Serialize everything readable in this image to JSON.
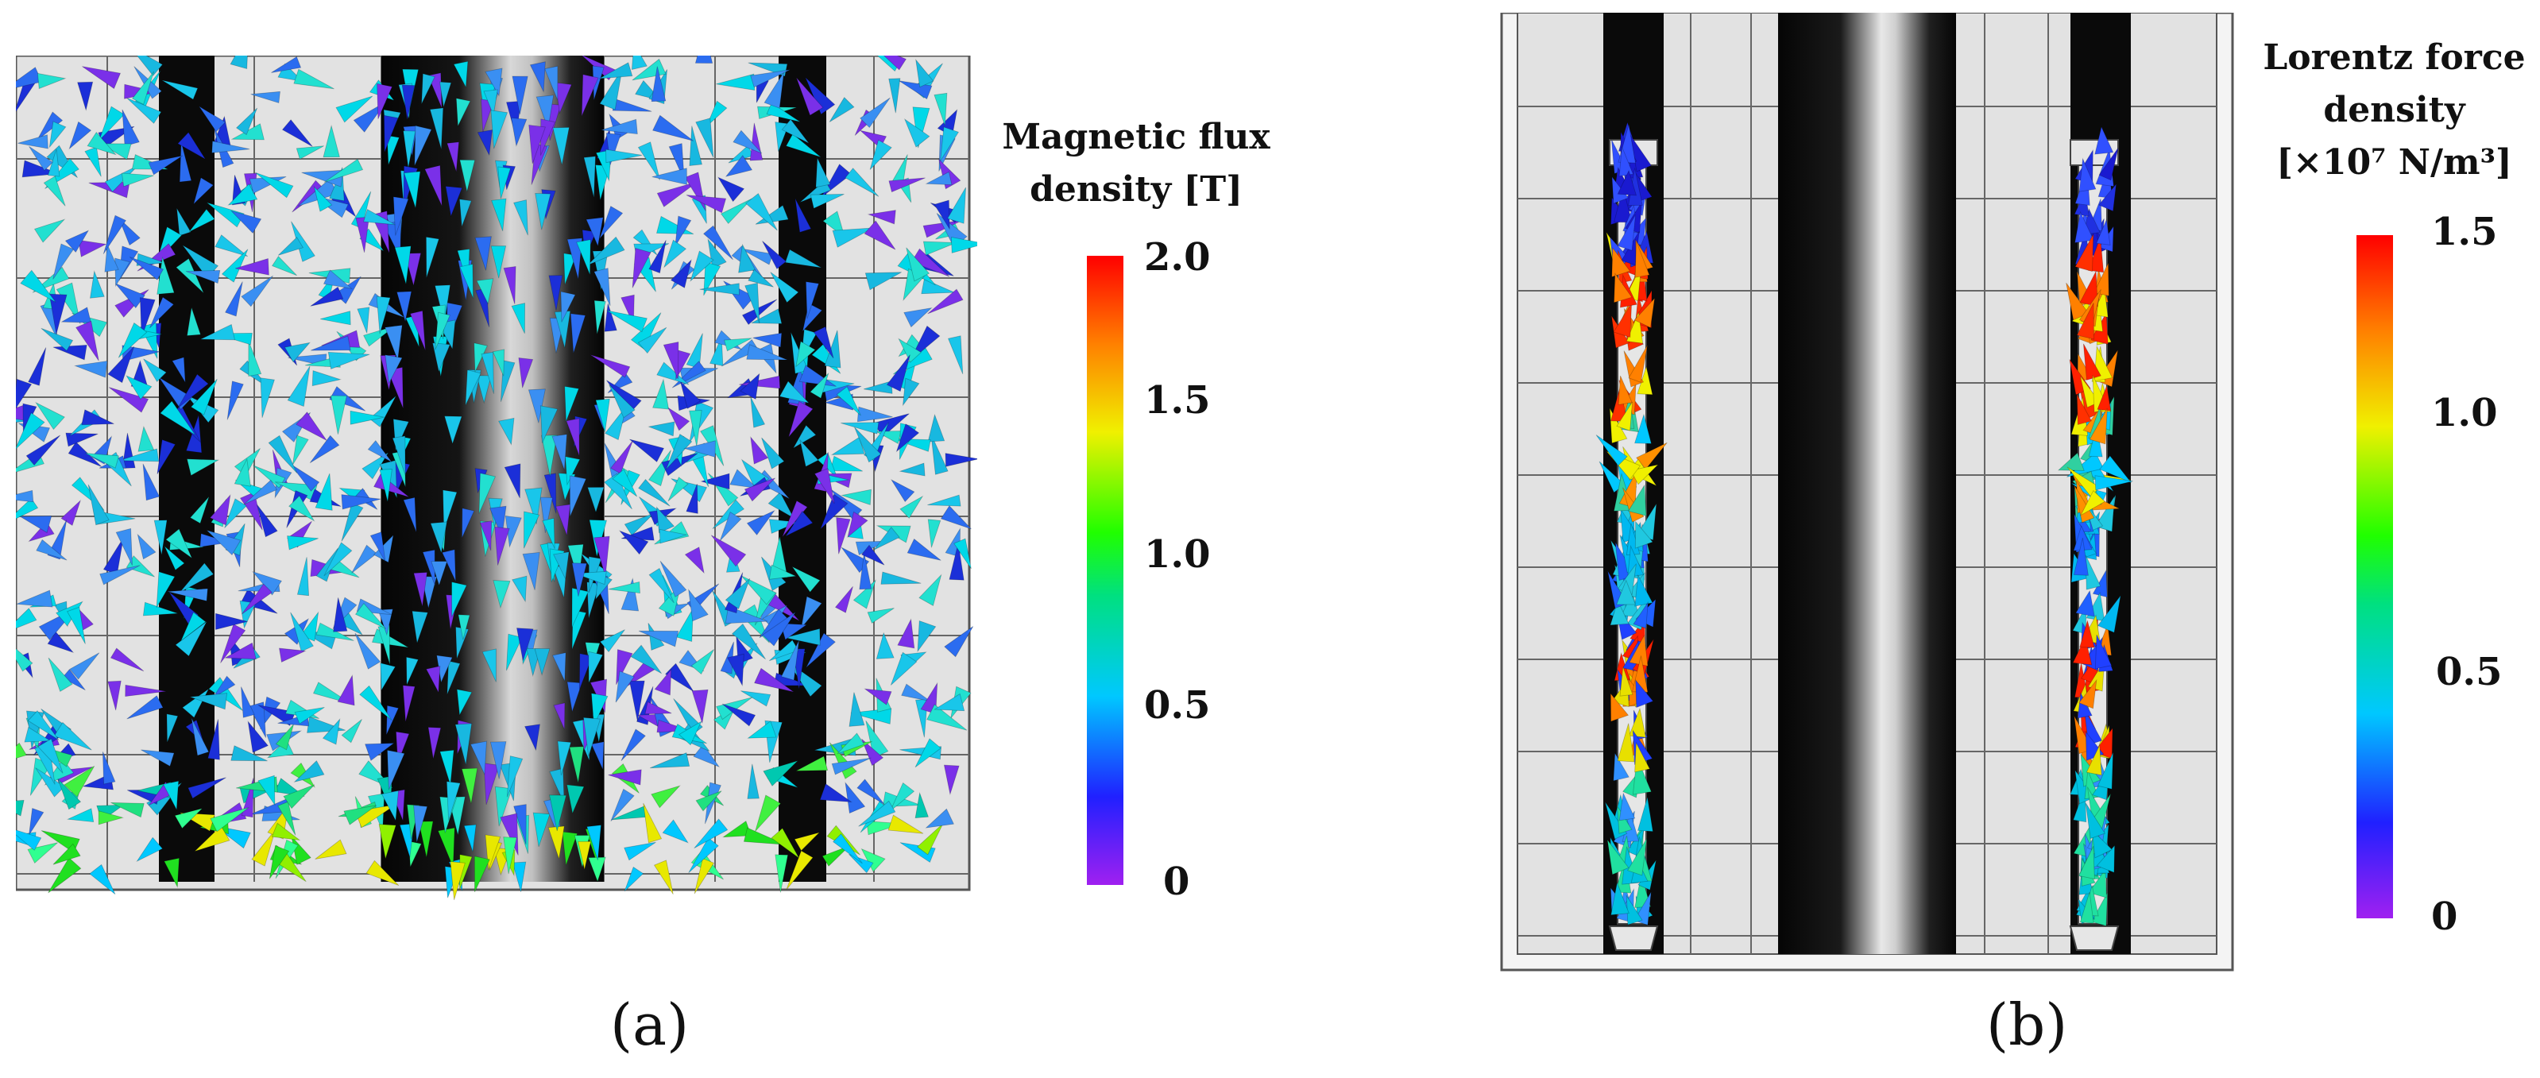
{
  "panel_a": {
    "caption": "(a)",
    "legend": {
      "title_lines": [
        "Magnetic flux",
        "density [T]"
      ],
      "ticks": [
        "2.0",
        "1.5",
        "1.0",
        "0.5",
        "0"
      ]
    }
  },
  "panel_b": {
    "caption": "(b)",
    "legend": {
      "title_lines": [
        "Lorentz force",
        "density",
        "[×10⁷ N/m³]"
      ],
      "ticks": [
        "1.5",
        "1.0",
        "0.5",
        "0"
      ]
    }
  },
  "colors": {
    "background": "#ffffff",
    "mesh_fill": "#e2e2e2",
    "mesh_line": "#555555",
    "conductor_dark": "#0a0a0a",
    "conductor_highlight": "#ffffff"
  }
}
